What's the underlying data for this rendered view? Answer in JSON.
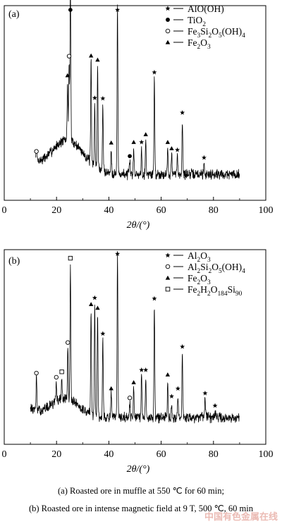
{
  "chart_data": [
    {
      "type": "line",
      "panel_label": "(a)",
      "xlabel": "2θ/(°)",
      "ylabel": "",
      "xlim": [
        0,
        100
      ],
      "xticks": [
        0,
        20,
        40,
        60,
        80,
        100
      ],
      "x_range": [
        12,
        90
      ],
      "baseline_hump": {
        "center": 24,
        "height": 0.22,
        "width": 9
      },
      "noise": 0.05,
      "legend": [
        {
          "marker": "star",
          "label": "AlO(OH)"
        },
        {
          "marker": "filled-circle",
          "label": "TiO2"
        },
        {
          "marker": "open-circle",
          "label": "Fe3Si2O5(OH)4"
        },
        {
          "marker": "triangle",
          "label": "Fe2O3"
        }
      ],
      "peaks": [
        {
          "x": 12.3,
          "h": 0.07,
          "marker": "open-circle"
        },
        {
          "x": 24.2,
          "h": 0.38,
          "marker": "triangle"
        },
        {
          "x": 24.8,
          "h": 0.5,
          "marker": "open-circle"
        },
        {
          "x": 25.3,
          "h": 1.02,
          "marker": "filled-circle"
        },
        {
          "x": 33.2,
          "h": 0.65,
          "marker": "triangle"
        },
        {
          "x": 34.6,
          "h": 0.4,
          "marker": "star"
        },
        {
          "x": 35.7,
          "h": 0.66,
          "marker": "triangle"
        },
        {
          "x": 37.7,
          "h": 0.43,
          "marker": "star"
        },
        {
          "x": 40.9,
          "h": 0.16,
          "marker": "triangle"
        },
        {
          "x": 43.3,
          "h": 1.08,
          "marker": "star"
        },
        {
          "x": 48.0,
          "h": 0.08,
          "marker": "filled-circle"
        },
        {
          "x": 49.5,
          "h": 0.17,
          "marker": "triangle"
        },
        {
          "x": 52.5,
          "h": 0.17,
          "marker": "star"
        },
        {
          "x": 54.1,
          "h": 0.22,
          "marker": "triangle"
        },
        {
          "x": 57.4,
          "h": 0.62,
          "marker": "star"
        },
        {
          "x": 62.5,
          "h": 0.17,
          "marker": "triangle"
        },
        {
          "x": 64.0,
          "h": 0.13,
          "marker": "triangle"
        },
        {
          "x": 66.2,
          "h": 0.12,
          "marker": "star"
        },
        {
          "x": 68.1,
          "h": 0.36,
          "marker": "star"
        },
        {
          "x": 76.4,
          "h": 0.07,
          "marker": "star"
        }
      ]
    },
    {
      "type": "line",
      "panel_label": "(b)",
      "xlabel": "2θ/(°)",
      "ylabel": "",
      "xlim": [
        0,
        100
      ],
      "xticks": [
        0,
        20,
        40,
        60,
        80,
        100
      ],
      "x_range": [
        10,
        90
      ],
      "baseline_hump": {
        "center": 23,
        "height": 0.12,
        "width": 8
      },
      "noise": 0.05,
      "legend": [
        {
          "marker": "star",
          "label": "Al2O3"
        },
        {
          "marker": "open-circle",
          "label": "Al2Si2O5(OH)4"
        },
        {
          "marker": "triangle",
          "label": "Fe2O3"
        },
        {
          "marker": "square",
          "label": "Fe2H2O184Si90"
        }
      ],
      "peaks": [
        {
          "x": 12.3,
          "h": 0.23,
          "marker": "open-circle"
        },
        {
          "x": 19.9,
          "h": 0.12,
          "marker": "open-circle"
        },
        {
          "x": 22.0,
          "h": 0.14,
          "marker": "square"
        },
        {
          "x": 24.3,
          "h": 0.33,
          "marker": "open-circle"
        },
        {
          "x": 25.3,
          "h": 0.88,
          "marker": "square"
        },
        {
          "x": 33.2,
          "h": 0.67,
          "marker": "triangle"
        },
        {
          "x": 34.6,
          "h": 0.72,
          "marker": "star"
        },
        {
          "x": 35.7,
          "h": 0.66,
          "marker": "triangle"
        },
        {
          "x": 37.7,
          "h": 0.5,
          "marker": "star"
        },
        {
          "x": 40.9,
          "h": 0.15,
          "marker": "triangle"
        },
        {
          "x": 43.3,
          "h": 1.05,
          "marker": "star"
        },
        {
          "x": 48.0,
          "h": 0.09,
          "marker": "open-circle"
        },
        {
          "x": 49.5,
          "h": 0.19,
          "marker": "triangle"
        },
        {
          "x": 52.5,
          "h": 0.27,
          "marker": "star"
        },
        {
          "x": 54.1,
          "h": 0.27,
          "marker": "star"
        },
        {
          "x": 57.4,
          "h": 0.73,
          "marker": "star"
        },
        {
          "x": 62.5,
          "h": 0.24,
          "marker": "triangle"
        },
        {
          "x": 64.0,
          "h": 0.1,
          "marker": "star"
        },
        {
          "x": 66.4,
          "h": 0.15,
          "marker": "star"
        },
        {
          "x": 68.1,
          "h": 0.42,
          "marker": "star"
        },
        {
          "x": 76.8,
          "h": 0.12,
          "marker": "star"
        },
        {
          "x": 80.6,
          "h": 0.04,
          "marker": "star"
        }
      ]
    }
  ],
  "captions": {
    "a": "(a) Roasted ore in muffle at 550 ℃ for 60 min;",
    "b": "(b) Roasted ore in intense magnetic field at 9 T, 500 ℃, 60 min"
  },
  "watermark": "中国有色金属在线"
}
